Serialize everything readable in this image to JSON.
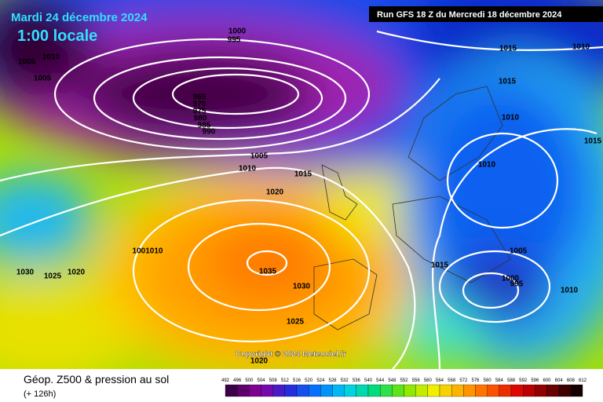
{
  "header": {
    "date": "Mardi 24 décembre 2024",
    "time": "1:00 locale",
    "run": "Run GFS 18 Z du Mercredi 18 décembre 2024"
  },
  "copyright": "Copyright © 2024 Meteociel.fr",
  "footer": {
    "title": "Géop. Z500 & pression au sol",
    "lead": "(+ 126h)"
  },
  "isobars": [
    1000,
    995,
    1005,
    1010,
    1005,
    965,
    970,
    975,
    980,
    985,
    990,
    1005,
    1010,
    1015,
    1020,
    1015,
    1015,
    1010,
    1010,
    1010,
    1015,
    1005,
    1000,
    995,
    1010,
    1015,
    1001010,
    1030,
    1025,
    1020,
    1035,
    1030,
    1025,
    1020
  ],
  "colorbar": [
    492,
    496,
    500,
    504,
    508,
    512,
    516,
    520,
    524,
    528,
    532,
    536,
    540,
    544,
    548,
    552,
    556,
    560,
    564,
    568,
    572,
    576,
    580,
    584,
    588,
    592,
    596,
    600,
    604,
    608,
    612
  ]
}
